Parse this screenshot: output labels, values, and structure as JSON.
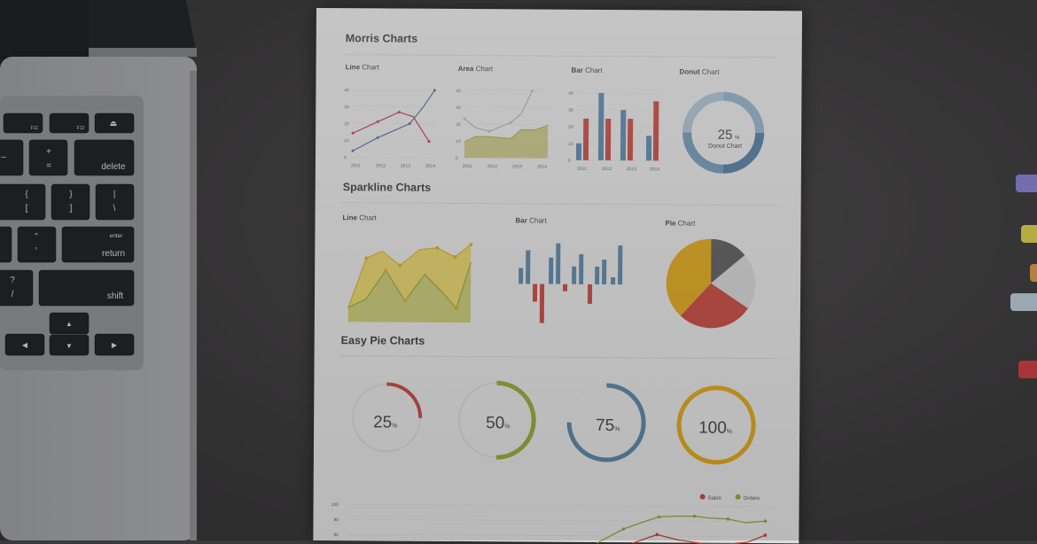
{
  "morris": {
    "title": "Morris Charts",
    "line_label_bold": "Line",
    "line_label_rest": " Chart",
    "area_label_bold": "Area",
    "area_label_rest": " Chart",
    "bar_label_bold": "Bar",
    "bar_label_rest": " Chart",
    "donut_label_bold": "Donut",
    "donut_label_rest": " Chart",
    "donut_value": "25",
    "donut_unit": "%",
    "donut_caption": "Donut Chart",
    "y_ticks": [
      "40",
      "30",
      "20",
      "10",
      "0"
    ],
    "x_ticks": [
      "2011",
      "2012",
      "2013",
      "2014"
    ]
  },
  "sparkline": {
    "title": "Sparkline Charts",
    "line_label_bold": "Line",
    "line_label_rest": " Chart",
    "bar_label_bold": "Bar",
    "bar_label_rest": " Chart",
    "pie_label_bold": "Pie",
    "pie_label_rest": " Chart"
  },
  "easy_pie": {
    "title": "Easy Pie Charts",
    "items": [
      {
        "value": "25",
        "unit": "%",
        "color": "#c9463d",
        "fraction": 0.25
      },
      {
        "value": "50",
        "unit": "%",
        "color": "#9aaa3a",
        "fraction": 0.5
      },
      {
        "value": "75",
        "unit": "%",
        "color": "#5a86a8",
        "fraction": 0.75
      },
      {
        "value": "100",
        "unit": "%",
        "color": "#e3a817",
        "fraction": 1.0
      }
    ]
  },
  "bottom_chart": {
    "legend": [
      {
        "name": "Sales",
        "color": "#c9463d"
      },
      {
        "name": "Orders",
        "color": "#9aaa3a"
      }
    ],
    "y_ticks": [
      "100",
      "90",
      "80"
    ]
  },
  "laptop_keys": {
    "f11": "F11",
    "f12": "F12",
    "delete": "delete",
    "return": "return",
    "enter": "enter",
    "shift": "shift",
    "plus": "+",
    "equals": "=",
    "minus": "–",
    "brace_open": "{",
    "bracket_open": "[",
    "brace_close": "}",
    "bracket_close": "]",
    "pipe": "|",
    "backslash": "\\",
    "quote": "\"",
    "apostrophe": "'",
    "question": "?",
    "slash": "/"
  }
}
